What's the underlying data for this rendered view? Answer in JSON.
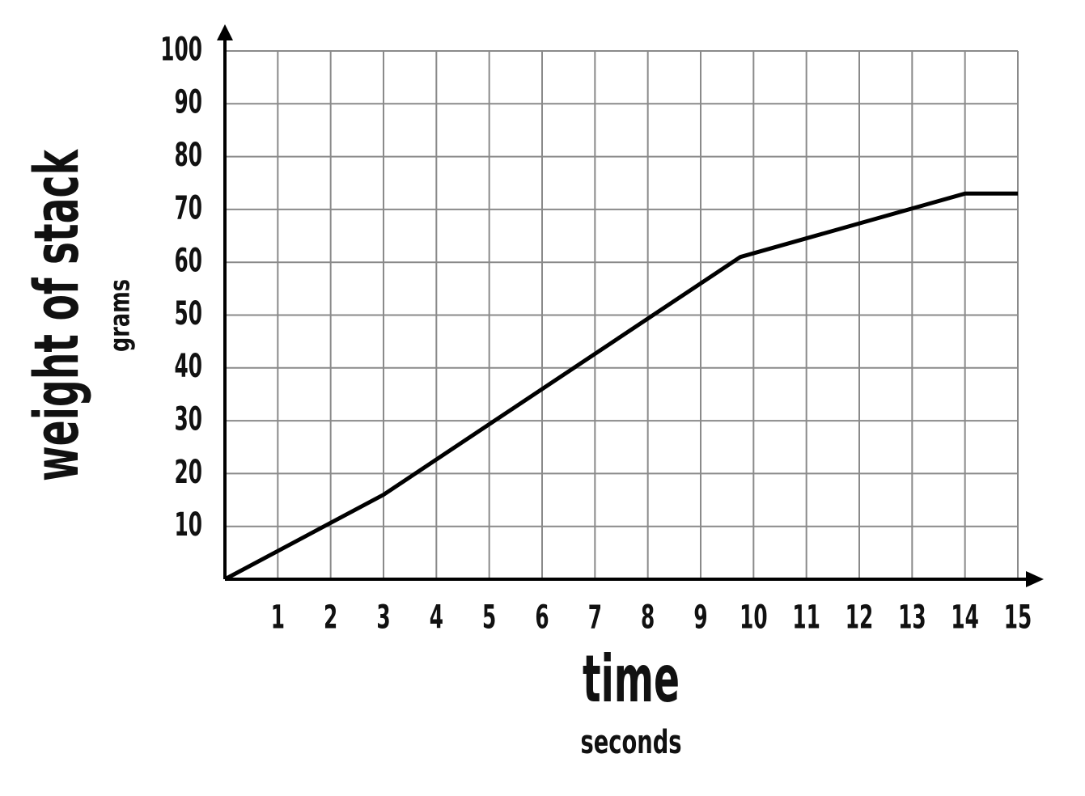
{
  "chart_data": {
    "type": "line",
    "y_label": "weight of stack",
    "y_unit": "grams",
    "x_label": "time",
    "x_unit": "seconds",
    "x": [
      0,
      3,
      9.75,
      14,
      15
    ],
    "series": [
      {
        "color": "#000000",
        "values": [
          0,
          16,
          61,
          73,
          73
        ]
      }
    ],
    "xlim": [
      0,
      15
    ],
    "ylim": [
      0,
      100
    ],
    "xticks": [
      1,
      2,
      3,
      4,
      5,
      6,
      7,
      8,
      9,
      10,
      11,
      12,
      13,
      14,
      15
    ],
    "yticks": [
      10,
      20,
      30,
      40,
      50,
      60,
      70,
      80,
      90,
      100
    ],
    "grid": true
  }
}
